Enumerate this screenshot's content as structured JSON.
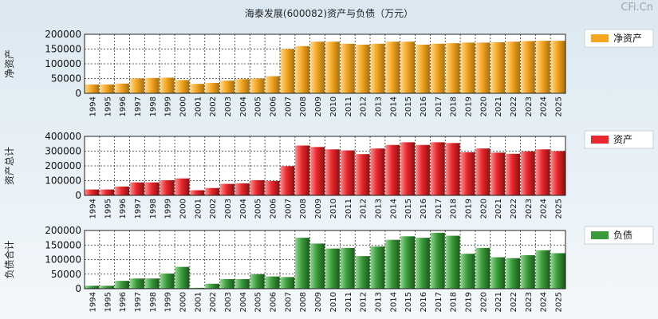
{
  "title": "海泰发展(600082)资产与负债（万元）",
  "watermark": "CFi.Cn",
  "chart_data": [
    {
      "type": "bar",
      "name": "net-assets",
      "ylabel": "净资产",
      "legend": "净资产",
      "color": "#f5a623",
      "color_dark": "#a8700f",
      "color_light": "#ffd98a",
      "ylim": [
        0,
        200000
      ],
      "yticks": [
        0,
        50000,
        100000,
        150000,
        200000
      ],
      "categories": [
        "1994",
        "1995",
        "1996",
        "1997",
        "1998",
        "1999",
        "2000",
        "2001",
        "2002",
        "2003",
        "2004",
        "2005",
        "2006",
        "2007",
        "2008",
        "2009",
        "2010",
        "2011",
        "2012",
        "2013",
        "2014",
        "2015",
        "2016",
        "2017",
        "2018",
        "2019",
        "2020",
        "2021",
        "2022",
        "2023",
        "2024",
        "2025"
      ],
      "values": [
        30000,
        30000,
        33000,
        50000,
        52000,
        53000,
        45000,
        32000,
        35000,
        43000,
        48000,
        50000,
        58000,
        150000,
        160000,
        175000,
        175000,
        168000,
        165000,
        168000,
        175000,
        175000,
        165000,
        168000,
        170000,
        172000,
        172000,
        173000,
        175000,
        177000,
        178000,
        178000
      ]
    },
    {
      "type": "bar",
      "name": "total-assets",
      "ylabel": "资产总计",
      "legend": "资产",
      "color": "#e8282e",
      "color_dark": "#8c1010",
      "color_light": "#ff8c8c",
      "ylim": [
        0,
        400000
      ],
      "yticks": [
        0,
        100000,
        200000,
        300000,
        400000
      ],
      "categories": [
        "1994",
        "1995",
        "1996",
        "1997",
        "1998",
        "1999",
        "2000",
        "2001",
        "2002",
        "2003",
        "2004",
        "2005",
        "2006",
        "2007",
        "2008",
        "2009",
        "2010",
        "2011",
        "2012",
        "2013",
        "2014",
        "2015",
        "2016",
        "2017",
        "2018",
        "2019",
        "2020",
        "2021",
        "2022",
        "2023",
        "2024",
        "2025"
      ],
      "values": [
        40000,
        40000,
        60000,
        88000,
        88000,
        103000,
        115000,
        35000,
        50000,
        78000,
        82000,
        103000,
        98000,
        198000,
        338000,
        328000,
        312000,
        305000,
        280000,
        318000,
        342000,
        360000,
        342000,
        360000,
        355000,
        292000,
        318000,
        290000,
        282000,
        298000,
        312000,
        300000
      ]
    },
    {
      "type": "bar",
      "name": "total-liabilities",
      "ylabel": "负债合计",
      "legend": "负债",
      "color": "#3c9a3c",
      "color_dark": "#1a5a1a",
      "color_light": "#8fd88f",
      "ylim": [
        0,
        200000
      ],
      "yticks": [
        0,
        50000,
        100000,
        150000,
        200000
      ],
      "categories": [
        "1994",
        "1995",
        "1996",
        "1997",
        "1998",
        "1999",
        "2000",
        "2001",
        "2002",
        "2003",
        "2004",
        "2005",
        "2006",
        "2007",
        "2008",
        "2009",
        "2010",
        "2011",
        "2012",
        "2013",
        "2014",
        "2015",
        "2016",
        "2017",
        "2018",
        "2019",
        "2020",
        "2021",
        "2022",
        "2023",
        "2024",
        "2025"
      ],
      "values": [
        10000,
        10000,
        27000,
        35000,
        35000,
        52000,
        75000,
        3000,
        17000,
        33000,
        33000,
        50000,
        42000,
        40000,
        175000,
        155000,
        138000,
        140000,
        112000,
        145000,
        168000,
        180000,
        175000,
        192000,
        182000,
        120000,
        140000,
        108000,
        105000,
        115000,
        132000,
        122000
      ]
    }
  ]
}
